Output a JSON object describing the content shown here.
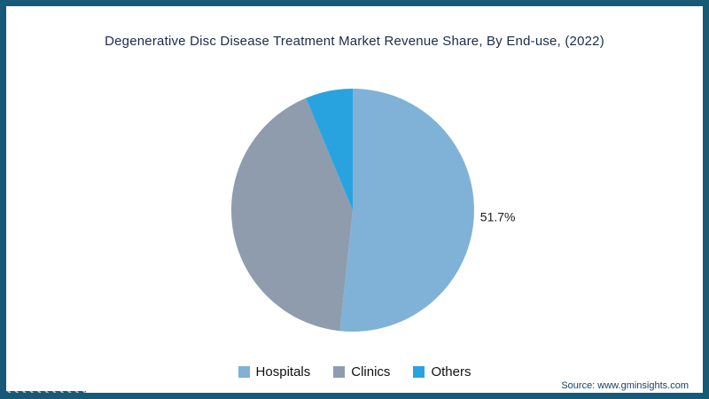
{
  "frame": {
    "border_color": "#165a78",
    "background": "#ffffff"
  },
  "chart_data": {
    "type": "pie",
    "title": "Degenerative Disc Disease Treatment Market Revenue Share, By End-use, (2022)",
    "slices": [
      {
        "label": "Hospitals",
        "value": 51.7,
        "data_label": "51.7%",
        "color": "#7fb2d6"
      },
      {
        "label": "Clinics",
        "value": 42.0,
        "data_label": "",
        "color": "#8e9cae"
      },
      {
        "label": "Others",
        "value": 6.3,
        "data_label": "",
        "color": "#29a3e0"
      }
    ],
    "start_angle": "top",
    "direction": "clockwise",
    "legend_position": "bottom",
    "shown_value_labels": [
      "51.7%"
    ]
  },
  "source": {
    "text": "Source: www.gminsights.com"
  }
}
